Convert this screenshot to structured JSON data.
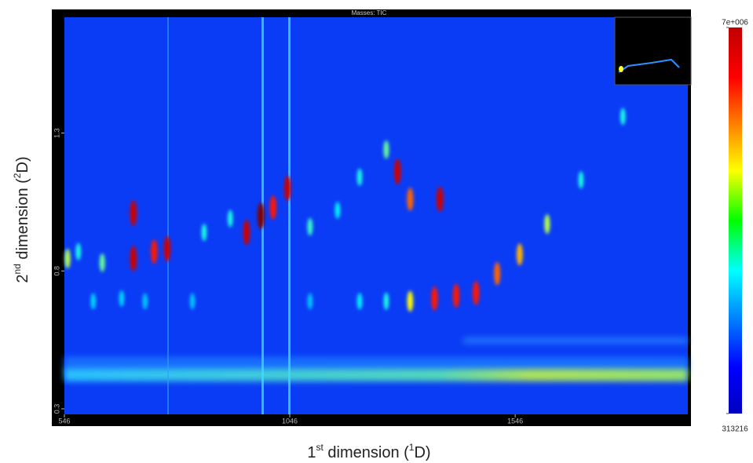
{
  "chart_data": {
    "type": "heatmap",
    "title": "Masses: TIC",
    "x_label": [
      "1",
      "st",
      " dimension (",
      "1",
      "D)"
    ],
    "y_label": [
      "2",
      "nd",
      " dimension (",
      "2",
      "D)"
    ],
    "xlim": [
      546,
      1929
    ],
    "ylim": [
      0.28,
      1.72
    ],
    "xticks": [
      546,
      1046,
      1546
    ],
    "yticks": [
      0.3,
      0.8,
      1.3
    ],
    "clim": [
      313216,
      7000000
    ],
    "cticks": [
      {
        "value": 7000000,
        "label": "7e+006"
      },
      313216
    ],
    "peaks": {
      "x": [
        699,
        699,
        745,
        774,
        950,
        982,
        1009,
        1041,
        1285,
        1313,
        1379,
        1367,
        1415,
        1459,
        1506,
        1556,
        1617,
        1692,
        1785,
        1260,
        1313,
        1260,
        1201,
        553,
        577,
        630,
        610,
        673,
        856,
        914,
        1091,
        1152,
        1201,
        725,
        830,
        1091
      ],
      "y": [
        1.01,
        0.845,
        0.87,
        0.88,
        0.94,
        1.0,
        1.03,
        1.1,
        1.16,
        1.06,
        1.06,
        0.7,
        0.71,
        0.72,
        0.79,
        0.86,
        0.97,
        1.13,
        1.36,
        1.24,
        0.69,
        0.69,
        0.69,
        0.845,
        0.87,
        0.83,
        0.69,
        0.7,
        0.94,
        0.99,
        0.96,
        1.02,
        1.14,
        0.69,
        0.69,
        0.69
      ],
      "intensity": [
        6500000,
        6500000,
        6000000,
        6500000,
        6500000,
        7000000,
        6000000,
        6500000,
        6500000,
        5500000,
        6500000,
        6000000,
        6000000,
        6000000,
        5500000,
        5000000,
        4000000,
        3000000,
        3000000,
        3500000,
        4500000,
        3000000,
        2800000,
        4000000,
        3000000,
        3500000,
        2600000,
        2600000,
        3000000,
        3000000,
        3200000,
        2800000,
        3000000,
        2500000,
        2500000,
        2500000
      ]
    }
  }
}
